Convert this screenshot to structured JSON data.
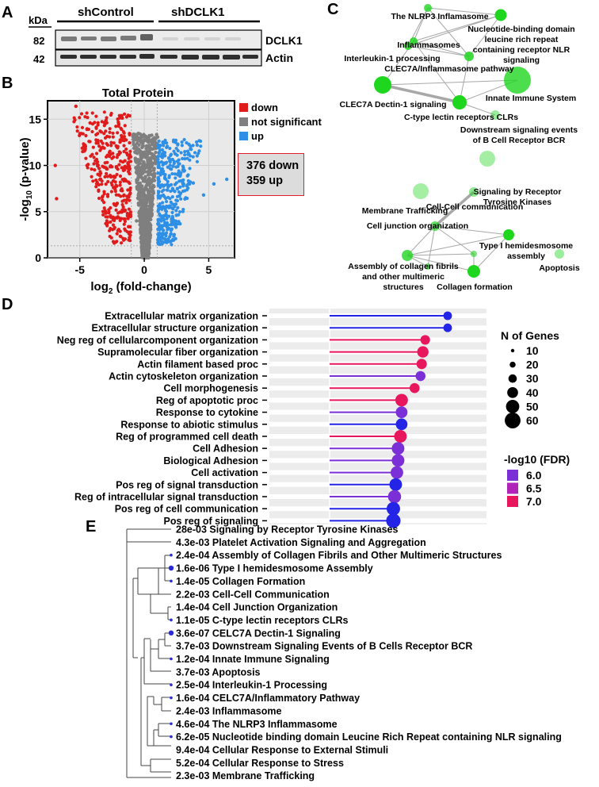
{
  "panels": {
    "A": "A",
    "B": "B",
    "C": "C",
    "D": "D",
    "E": "E"
  },
  "western_blot": {
    "kda_label": "kDa",
    "groups": [
      "shControl",
      "shDCLK1"
    ],
    "rows": [
      {
        "marker_kda": "82",
        "protein": "DCLK1"
      },
      {
        "marker_kda": "42",
        "protein": "Actin"
      }
    ],
    "colors": {
      "band": "#3a3a3a",
      "background": "#e8e8e8"
    }
  },
  "volcano": {
    "legend": [
      {
        "label": "down",
        "color": "#e01b1b"
      },
      {
        "label": "not significant",
        "color": "#7f7f7f"
      },
      {
        "label": "up",
        "color": "#2e8fe6"
      }
    ],
    "summary_lines": [
      "376 down",
      "359 up"
    ]
  },
  "network": {
    "node_color": "#1fd61f",
    "nodes": [
      {
        "id": "nlrp3",
        "label": "The NLRP3 Inflamasome"
      },
      {
        "id": "nod",
        "label": "Nucleotide-binding domain leucine rich repeat containing receptor NLR signaling"
      },
      {
        "id": "inflammasomes",
        "label": "Inflammasomes"
      },
      {
        "id": "il1",
        "label": "Interleukin-1 processing"
      },
      {
        "id": "clec7a_inf",
        "label": "CLEC7A/Inflammasome pathway"
      },
      {
        "id": "dectin",
        "label": "CLEC7A Dectin-1 signaling"
      },
      {
        "id": "innate",
        "label": "Innate Immune System"
      },
      {
        "id": "ctype",
        "label": "C-type lectin receptors CLRs"
      },
      {
        "id": "bcr",
        "label": "Downstream signaling events of B Cell Receptor BCR"
      },
      {
        "id": "memtraf",
        "label": "Membrane Trafficking"
      },
      {
        "id": "rtk",
        "label": "Signaling by Receptor Tyrosine Kinases"
      },
      {
        "id": "cellcell",
        "label": "Cell-Cell communication"
      },
      {
        "id": "junction",
        "label": "Cell junction organization"
      },
      {
        "id": "hemides",
        "label": "Type I hemidesmosome assembly"
      },
      {
        "id": "collagen_assembly",
        "label": "Assembly of collagen fibrils and other multimeric structures"
      },
      {
        "id": "collagen_form",
        "label": "Collagen formation"
      },
      {
        "id": "apoptosis",
        "label": "Apoptosis"
      }
    ]
  },
  "lollipop": {
    "size_legend_title": "N of Genes",
    "size_legend_values": [
      10,
      20,
      30,
      40,
      50,
      60
    ],
    "color_legend_title": "-log10 (FDR)",
    "color_legend": [
      {
        "value": "6.0",
        "color": "#7b2fd6"
      },
      {
        "value": "6.5",
        "color": "#b024b8"
      },
      {
        "value": "7.0",
        "color": "#e8175d"
      }
    ]
  },
  "tree": {
    "terms": [
      "28e-03 Signaling by Receptor Tyrosine Kinases",
      "4.3e-03 Platelet Activation Signaling and Aggregation",
      "2.4e-04 Assembly of Collagen Fibrils and Other Multimeric Structures",
      "1.6e-06 Type I hemidesmosome Assembly",
      "1.4e-05 Collagen Formation",
      "2.2e-03 Cell-Cell Communication",
      "1.4e-04 Cell Junction Organization",
      "1.1e-05 C-type lectin receptors CLRs",
      "3.6e-07 CELC7A Dectin-1 Signaling",
      "3.7e-03 Downstream Signaling Events of B Cells Receptor BCR",
      "1.2e-04 Innate Immune Signaling",
      "3.7e-03 Apoptosis",
      "2.5e-04 Interleukin-1 Processing",
      "1.6e-04 CELC7A/Inflammatory Pathway",
      "2.4e-03 Inflammasome",
      "4.6e-04 The NLRP3 Inflammasome",
      "6.2e-05 Nucleotide binding domain Leucine Rich Repeat containing NLR signaling",
      "9.4e-04 Cellular Response to External Stimuli",
      "5.2e-04 Cellular Response to Stress",
      "2.3e-03 Membrane Trafficking"
    ],
    "dot_color": "#2a2ad6"
  },
  "chart_data": [
    {
      "type": "scatter",
      "title": "Total Protein",
      "xlabel": "log2 (fold-change)",
      "ylabel": "-log10 (p-value)",
      "xlim": [
        -7.5,
        7
      ],
      "ylim": [
        0,
        17
      ],
      "xticks": [
        -5,
        0,
        5
      ],
      "yticks": [
        0,
        5,
        10,
        15
      ],
      "thresholds": {
        "x": [
          -1,
          1
        ],
        "y": 1.3
      },
      "counts": {
        "down": 376,
        "up": 359
      },
      "series": [
        {
          "name": "down",
          "points": [
            [
              -6.9,
              10.0
            ],
            [
              -6.8,
              6.4
            ],
            [
              -5.3,
              16.4
            ],
            [
              -4.6,
              12.2
            ],
            [
              -4.2,
              14.6
            ],
            [
              -3.6,
              12.7
            ],
            [
              -3.1,
              9.8
            ],
            [
              -2.7,
              11.4
            ],
            [
              -2.3,
              8.7
            ],
            [
              -2.1,
              5.9
            ],
            [
              -1.8,
              7.3
            ],
            [
              -1.5,
              10.5
            ],
            [
              -1.3,
              4.8
            ],
            [
              -1.2,
              6.6
            ]
          ]
        },
        {
          "name": "up",
          "points": [
            [
              1.3,
              5.5
            ],
            [
              1.6,
              8.6
            ],
            [
              1.9,
              10.8
            ],
            [
              2.2,
              7.5
            ],
            [
              2.6,
              12.3
            ],
            [
              3.0,
              9.5
            ],
            [
              3.4,
              11.2
            ],
            [
              3.8,
              8.1
            ],
            [
              4.1,
              12.2
            ],
            [
              4.6,
              6.8
            ],
            [
              5.4,
              8.0
            ],
            [
              6.4,
              8.5
            ]
          ]
        },
        {
          "name": "not significant",
          "points": [
            [
              -0.6,
              4.0
            ],
            [
              0.4,
              8.0
            ],
            [
              0.8,
              13.0
            ],
            [
              -0.2,
              1.2
            ],
            [
              0.2,
              1.5
            ]
          ]
        }
      ]
    },
    {
      "type": "lollipop",
      "xlabel": "",
      "ylabel": "",
      "categories": [
        "Extracellular matrix organization",
        "Extracellular structure organization",
        "Neg reg of cellularcomponent organization",
        "Supramolecular fiber organization",
        "Actin filament based proc",
        "Actin cytoskeleton organization",
        "Cell morphogenesis",
        "Reg of apoptotic proc",
        "Response to cytokine",
        "Response to abiotic stimulus",
        "Reg of programmed cell death",
        "Cell Adhesion",
        "Biological Adhesion",
        "Cell activation",
        "Pos reg of signal transduction",
        "Reg of intracellular signal transduction",
        "Pos reg of cell communication",
        "Pos reg of signaling"
      ],
      "values": [
        1.0,
        1.0,
        0.81,
        0.79,
        0.78,
        0.77,
        0.72,
        0.61,
        0.61,
        0.61,
        0.6,
        0.58,
        0.58,
        0.57,
        0.56,
        0.55,
        0.54,
        0.54
      ],
      "n_genes": [
        22,
        22,
        28,
        38,
        32,
        30,
        30,
        45,
        40,
        40,
        45,
        45,
        45,
        45,
        45,
        48,
        50,
        55
      ],
      "fdr_neglog10": [
        5.6,
        5.6,
        7.0,
        7.2,
        7.0,
        6.2,
        7.0,
        7.2,
        6.0,
        5.6,
        7.2,
        6.0,
        6.0,
        6.0,
        5.7,
        6.0,
        5.7,
        5.7
      ]
    },
    {
      "type": "dendrogram",
      "labels_key": "tree.terms",
      "dot_sizes": [
        0,
        0,
        1,
        2,
        1,
        0,
        0,
        1,
        2,
        0,
        1,
        0,
        1,
        1,
        0,
        1,
        1,
        0,
        0,
        0
      ]
    }
  ]
}
